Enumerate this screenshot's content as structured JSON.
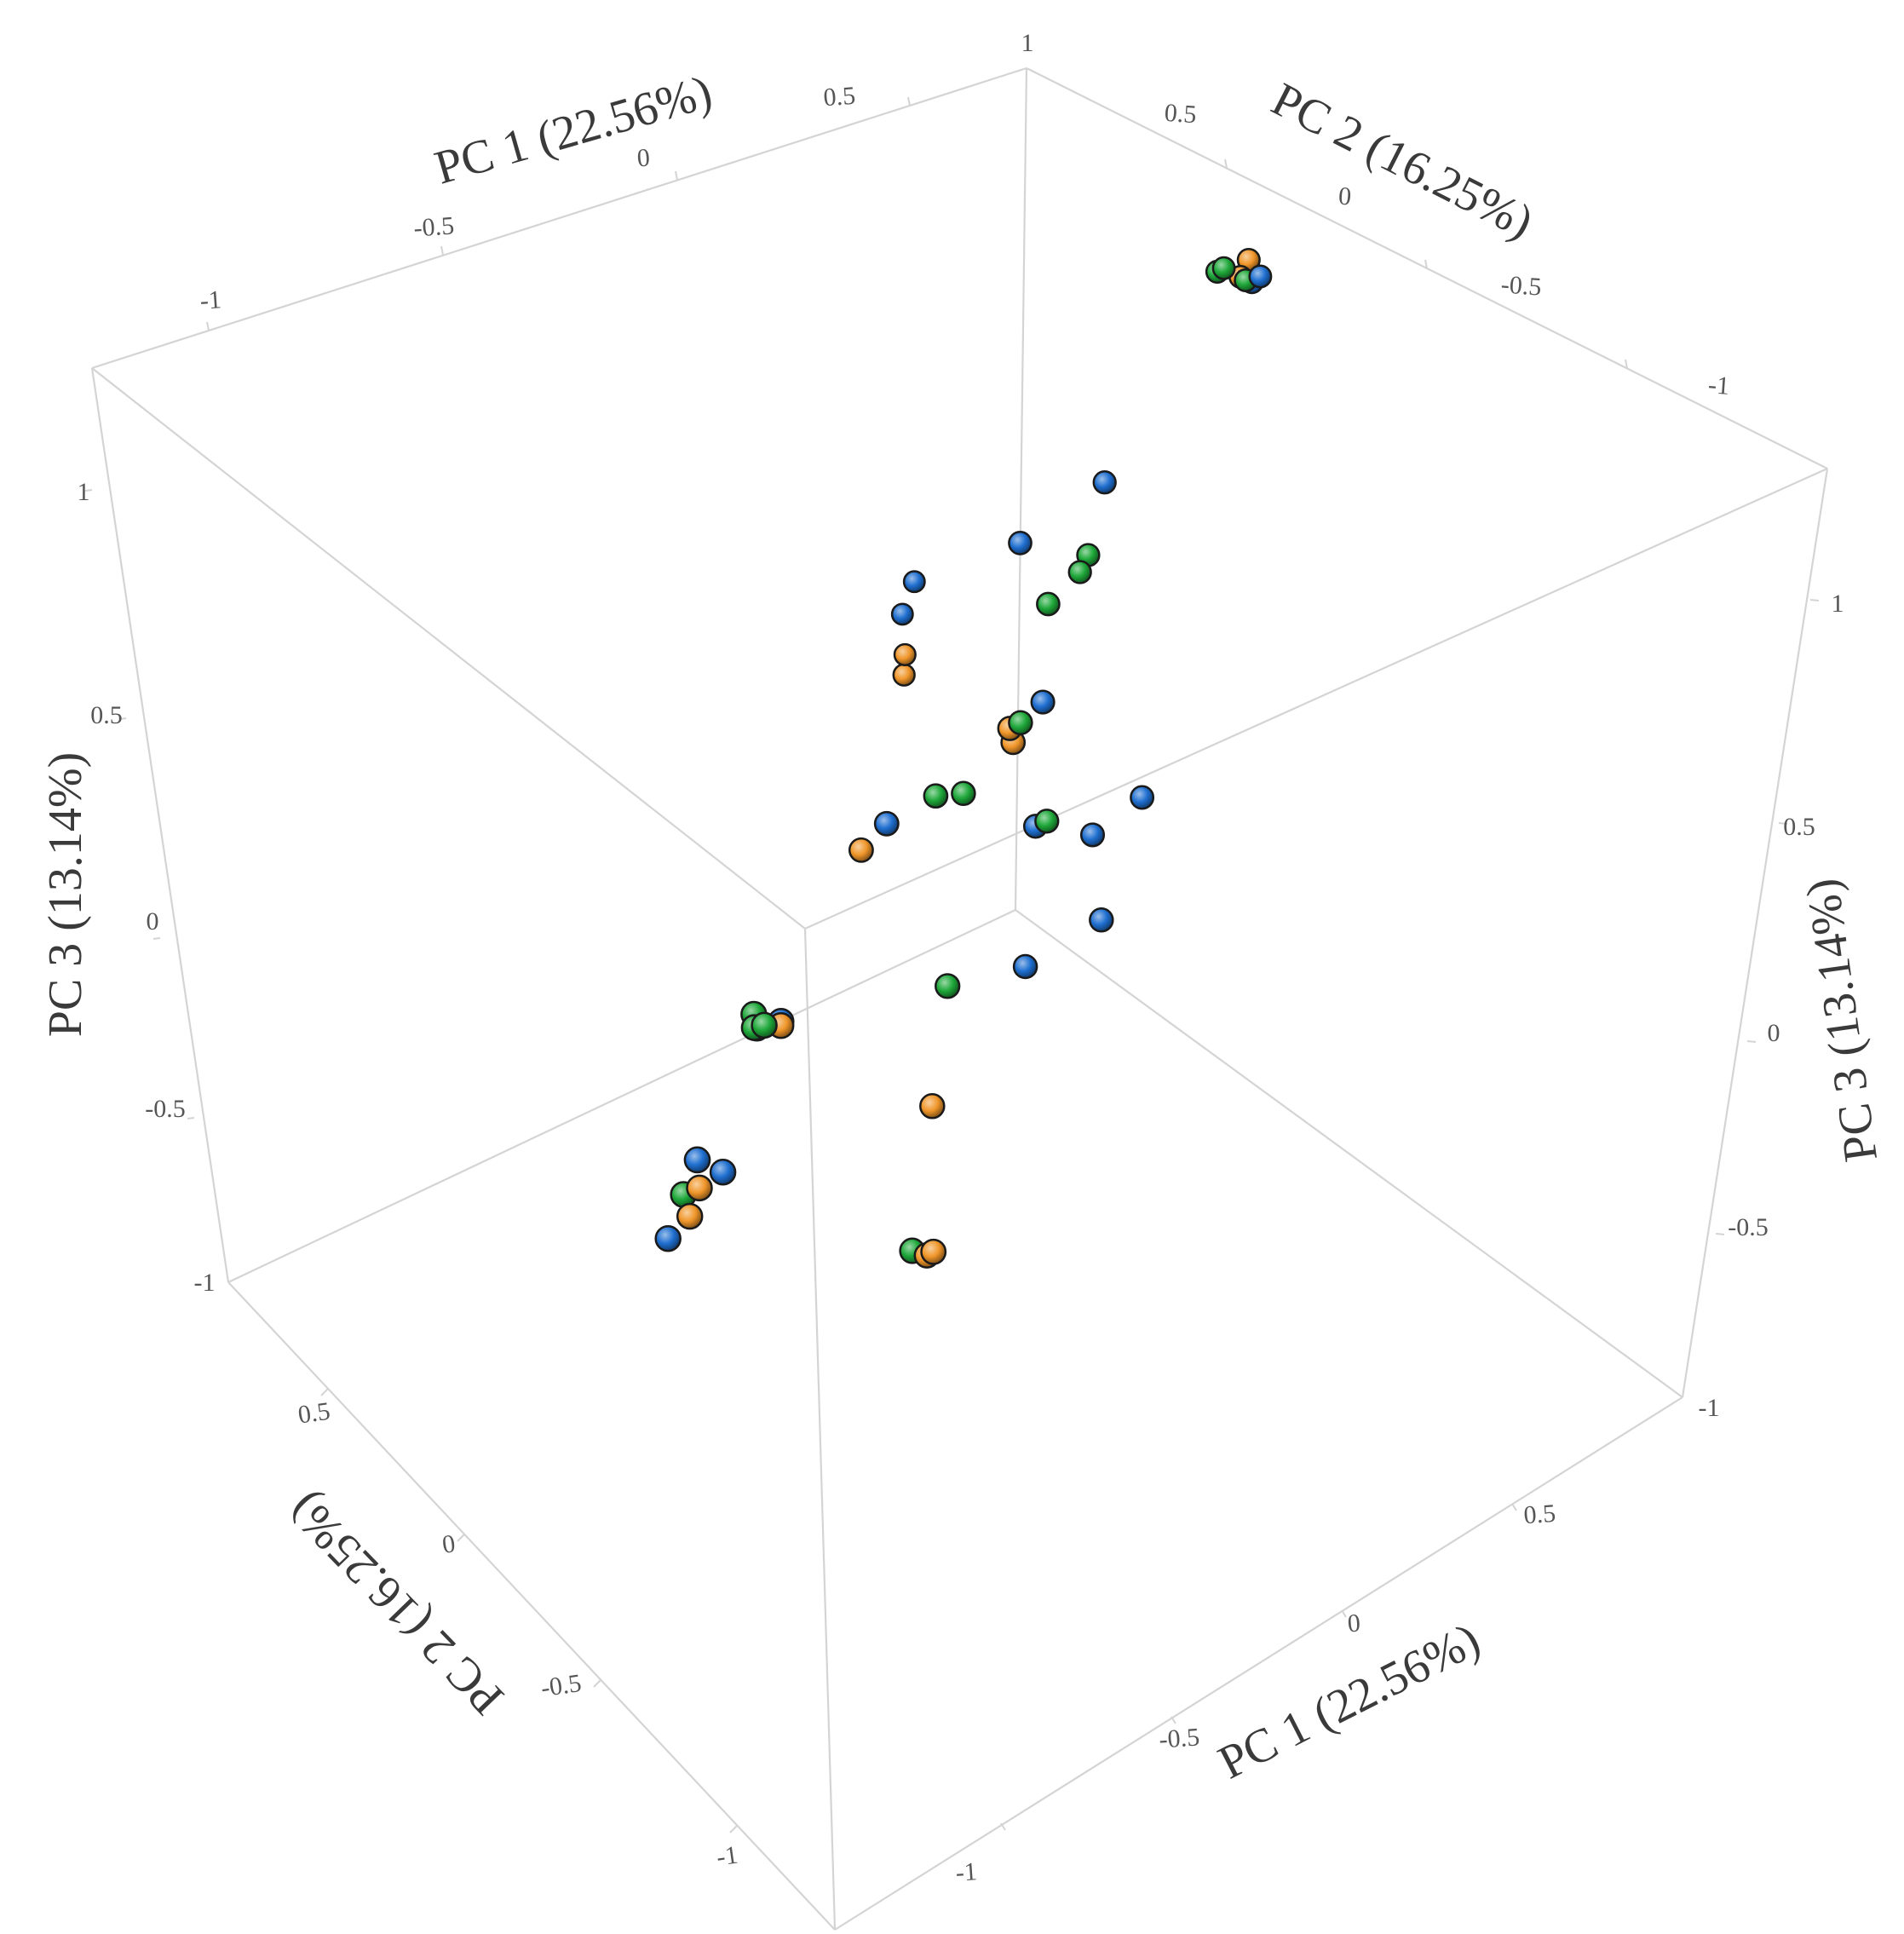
{
  "chart_data": {
    "type": "scatter",
    "title": "",
    "axes": {
      "pc1": {
        "label": "PC 1 (22.56%)",
        "ticks": [
          "-1",
          "-0.5",
          "0",
          "0.5"
        ],
        "range": [
          -1,
          1
        ]
      },
      "pc2": {
        "label": "PC 2 (16.25%)",
        "ticks": [
          "0.5",
          "0",
          "-0.5",
          "-1"
        ],
        "range": [
          -1,
          1
        ]
      },
      "pc3": {
        "label": "PC 3 (13.14%)",
        "ticks": [
          "1",
          "0.5",
          "0",
          "-0.5",
          "-1"
        ],
        "range": [
          -1,
          1
        ]
      },
      "right_pc3_ticks": [
        "1",
        "0.5",
        "0",
        "-0.5",
        "-1"
      ],
      "bottom_pc1_ticks": [
        "0.5",
        "0",
        "-0.5",
        "-1"
      ],
      "top_pc2_ticks": [
        "0.5",
        "0",
        "-0.5",
        "-1"
      ],
      "corner_tick_top": "1"
    },
    "grid": false,
    "legend": "none",
    "colors": {
      "blue": "#1f6fd0",
      "orange": "#f0962a",
      "green": "#1fa83a"
    },
    "series": [
      {
        "color": "blue",
        "points": [
          [
            0.78,
            0.18,
            0.96
          ],
          [
            0.85,
            0.24,
            0.92
          ],
          [
            -0.86,
            -0.51,
            0.1
          ],
          [
            -0.8,
            -0.5,
            0.09
          ],
          [
            -0.95,
            -0.47,
            -0.2
          ],
          [
            -0.86,
            -0.43,
            -0.28
          ],
          [
            -0.95,
            -0.4,
            -0.42
          ],
          [
            0.35,
            0.25,
            0.46
          ],
          [
            0.53,
            0.25,
            0.54
          ],
          [
            0.23,
            0.05,
            0.22
          ],
          [
            0.14,
            -0.04,
            0.0
          ],
          [
            0.28,
            -0.02,
            -0.08
          ],
          [
            0.42,
            0.02,
            -0.06
          ],
          [
            0.18,
            -0.16,
            -0.18
          ],
          [
            0.07,
            -0.1,
            -0.28
          ],
          [
            -0.18,
            -0.04,
            0.12
          ],
          [
            0.73,
            0.95,
            -0.1
          ],
          [
            0.74,
            0.99,
            -0.2
          ]
        ]
      },
      {
        "color": "orange",
        "points": [
          [
            0.79,
            0.2,
            1.0
          ],
          [
            0.79,
            0.22,
            0.95
          ],
          [
            -0.8,
            -0.5,
            0.08
          ],
          [
            -0.91,
            -0.43,
            -0.3
          ],
          [
            -0.93,
            -0.43,
            -0.36
          ],
          [
            0.03,
            -0.1,
            0.3
          ],
          [
            0.02,
            -0.12,
            0.28
          ],
          [
            -0.26,
            -0.07,
            0.1
          ],
          [
            -0.36,
            -0.37,
            -0.33
          ],
          [
            -0.48,
            -0.5,
            -0.58
          ],
          [
            -0.44,
            -0.47,
            -0.6
          ],
          [
            0.66,
            0.89,
            -0.22
          ],
          [
            0.65,
            0.88,
            -0.26
          ]
        ]
      },
      {
        "color": "green",
        "points": [
          [
            0.74,
            0.22,
            0.98
          ],
          [
            0.78,
            0.25,
            0.96
          ],
          [
            0.81,
            0.23,
            0.93
          ],
          [
            -0.85,
            -0.49,
            0.12
          ],
          [
            -0.84,
            -0.48,
            0.08
          ],
          [
            -0.81,
            -0.47,
            0.07
          ],
          [
            -0.97,
            -0.46,
            -0.28
          ],
          [
            0.07,
            -0.08,
            0.29
          ],
          [
            0.36,
            0.19,
            0.34
          ],
          [
            0.54,
            0.3,
            0.34
          ],
          [
            0.54,
            0.32,
            0.29
          ],
          [
            0.01,
            -0.01,
            0.11
          ],
          [
            -0.11,
            -0.08,
            0.18
          ],
          [
            0.19,
            -0.01,
            -0.02
          ],
          [
            -0.27,
            -0.3,
            -0.11
          ],
          [
            -0.52,
            -0.51,
            -0.55
          ]
        ]
      }
    ]
  }
}
